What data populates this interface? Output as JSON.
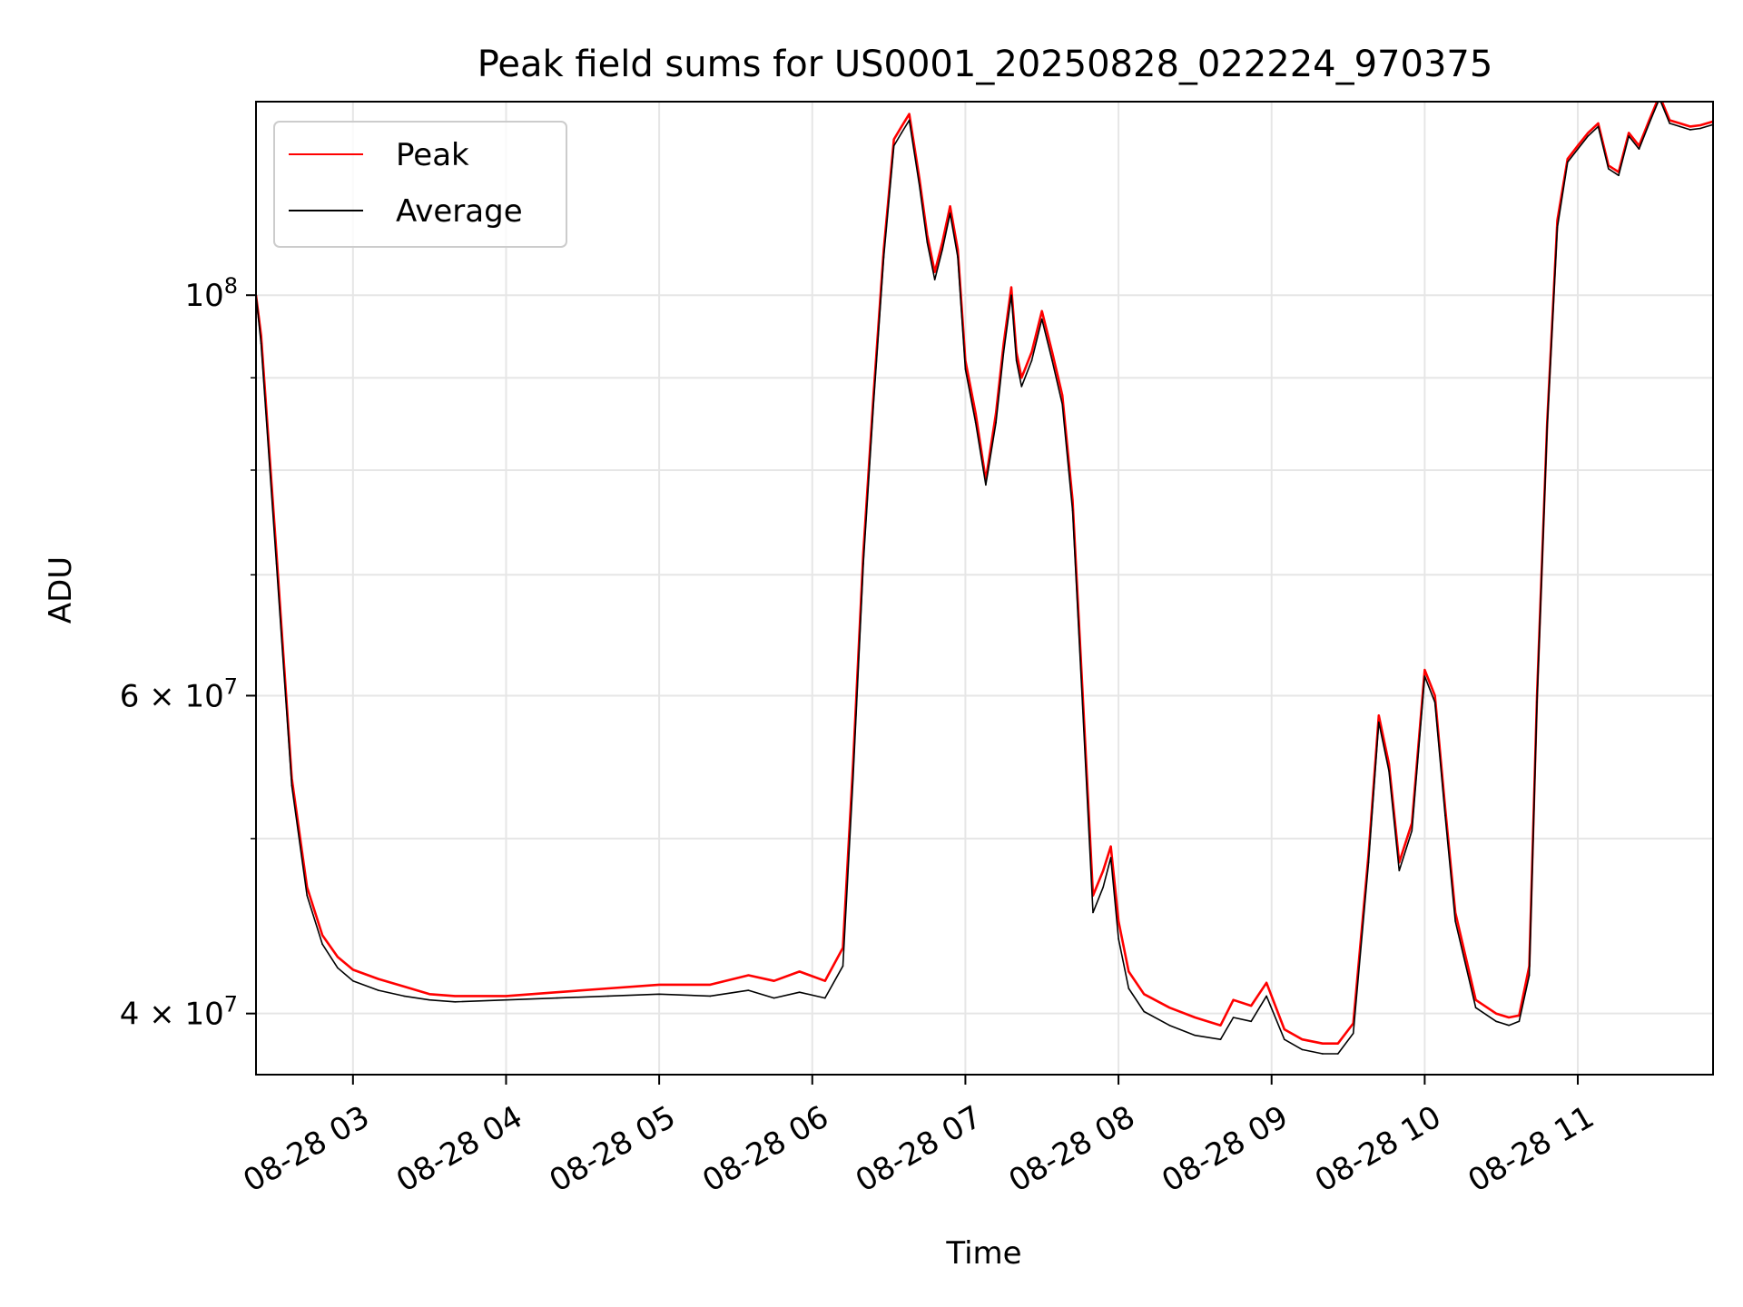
{
  "chart_data": {
    "type": "line",
    "title": "Peak field sums for US0001_20250828_022224_970375",
    "xlabel": "Time",
    "ylabel": "ADU",
    "x_range": [
      "2025-08-28 02:22",
      "2025-08-28 11:53"
    ],
    "ylim": [
      37000000,
      128000000
    ],
    "y_scale": "log",
    "grid": true,
    "legend_position": "top-left",
    "x_ticks": [
      "08-28 03",
      "08-28 04",
      "08-28 05",
      "08-28 06",
      "08-28 07",
      "08-28 08",
      "08-28 09",
      "08-28 10",
      "08-28 11"
    ],
    "x_tick_values": [
      "2025-08-28 03:00",
      "2025-08-28 04:00",
      "2025-08-28 05:00",
      "2025-08-28 06:00",
      "2025-08-28 07:00",
      "2025-08-28 08:00",
      "2025-08-28 09:00",
      "2025-08-28 10:00",
      "2025-08-28 11:00"
    ],
    "y_ticks": [
      {
        "value": 100000000,
        "base": "10",
        "exp": "8"
      },
      {
        "value": 60000000,
        "base": "6 × 10",
        "exp": "7"
      },
      {
        "value": 40000000,
        "base": "4 × 10",
        "exp": "7"
      }
    ],
    "y_minor_ticks": [
      50000000,
      70000000,
      80000000,
      90000000
    ],
    "series": [
      {
        "name": "Peak",
        "color": "#ff0000",
        "x": [
          "2025-08-28 02:22",
          "2025-08-28 02:24",
          "2025-08-28 02:30",
          "2025-08-28 02:36",
          "2025-08-28 02:42",
          "2025-08-28 02:48",
          "2025-08-28 02:54",
          "2025-08-28 03:00",
          "2025-08-28 03:10",
          "2025-08-28 03:20",
          "2025-08-28 03:30",
          "2025-08-28 03:40",
          "2025-08-28 04:00",
          "2025-08-28 04:20",
          "2025-08-28 04:40",
          "2025-08-28 05:00",
          "2025-08-28 05:20",
          "2025-08-28 05:35",
          "2025-08-28 05:45",
          "2025-08-28 05:55",
          "2025-08-28 06:05",
          "2025-08-28 06:12",
          "2025-08-28 06:16",
          "2025-08-28 06:20",
          "2025-08-28 06:24",
          "2025-08-28 06:28",
          "2025-08-28 06:32",
          "2025-08-28 06:35",
          "2025-08-28 06:38",
          "2025-08-28 06:42",
          "2025-08-28 06:45",
          "2025-08-28 06:48",
          "2025-08-28 06:51",
          "2025-08-28 06:54",
          "2025-08-28 06:57",
          "2025-08-28 07:00",
          "2025-08-28 07:04",
          "2025-08-28 07:08",
          "2025-08-28 07:12",
          "2025-08-28 07:15",
          "2025-08-28 07:18",
          "2025-08-28 07:20",
          "2025-08-28 07:22",
          "2025-08-28 07:26",
          "2025-08-28 07:30",
          "2025-08-28 07:34",
          "2025-08-28 07:38",
          "2025-08-28 07:42",
          "2025-08-28 07:46",
          "2025-08-28 07:50",
          "2025-08-28 07:54",
          "2025-08-28 07:57",
          "2025-08-28 08:00",
          "2025-08-28 08:04",
          "2025-08-28 08:10",
          "2025-08-28 08:20",
          "2025-08-28 08:30",
          "2025-08-28 08:40",
          "2025-08-28 08:45",
          "2025-08-28 08:52",
          "2025-08-28 08:58",
          "2025-08-28 09:05",
          "2025-08-28 09:12",
          "2025-08-28 09:20",
          "2025-08-28 09:26",
          "2025-08-28 09:32",
          "2025-08-28 09:38",
          "2025-08-28 09:42",
          "2025-08-28 09:46",
          "2025-08-28 09:50",
          "2025-08-28 09:55",
          "2025-08-28 10:00",
          "2025-08-28 10:04",
          "2025-08-28 10:08",
          "2025-08-28 10:12",
          "2025-08-28 10:20",
          "2025-08-28 10:28",
          "2025-08-28 10:33",
          "2025-08-28 10:37",
          "2025-08-28 10:41",
          "2025-08-28 10:44",
          "2025-08-28 10:48",
          "2025-08-28 10:52",
          "2025-08-28 10:56",
          "2025-08-28 11:00",
          "2025-08-28 11:04",
          "2025-08-28 11:08",
          "2025-08-28 11:12",
          "2025-08-28 11:16",
          "2025-08-28 11:20",
          "2025-08-28 11:24",
          "2025-08-28 11:28",
          "2025-08-28 11:32",
          "2025-08-28 11:36",
          "2025-08-28 11:40",
          "2025-08-28 11:44",
          "2025-08-28 11:48",
          "2025-08-28 11:53"
        ],
        "y": [
          100000000,
          95000000,
          72000000,
          54000000,
          47000000,
          44200000,
          43000000,
          42300000,
          41800000,
          41400000,
          41000000,
          40900000,
          40900000,
          41100000,
          41300000,
          41500000,
          41500000,
          42000000,
          41700000,
          42200000,
          41700000,
          43500000,
          55000000,
          72000000,
          88000000,
          106000000,
          122000000,
          124000000,
          126000000,
          116000000,
          108000000,
          103000000,
          107000000,
          112000000,
          106000000,
          92000000,
          86000000,
          79000000,
          86000000,
          94000000,
          101000000,
          93000000,
          90000000,
          93000000,
          98000000,
          93000000,
          88000000,
          77000000,
          60000000,
          46500000,
          48000000,
          49500000,
          45000000,
          42200000,
          41000000,
          40300000,
          39800000,
          39400000,
          40700000,
          40400000,
          41600000,
          39200000,
          38700000,
          38500000,
          38500000,
          39500000,
          49000000,
          58500000,
          55000000,
          48500000,
          51000000,
          62000000,
          60000000,
          52000000,
          45500000,
          40700000,
          40000000,
          39800000,
          39900000,
          42500000,
          60000000,
          85000000,
          110000000,
          119000000,
          121000000,
          123000000,
          124500000,
          118000000,
          117000000,
          123000000,
          121000000,
          125000000,
          129000000,
          125000000,
          124500000,
          124000000,
          124200000,
          124800000
        ]
      },
      {
        "name": "Average",
        "color": "#000000",
        "x": [
          "2025-08-28 02:22",
          "2025-08-28 02:24",
          "2025-08-28 02:30",
          "2025-08-28 02:36",
          "2025-08-28 02:42",
          "2025-08-28 02:48",
          "2025-08-28 02:54",
          "2025-08-28 03:00",
          "2025-08-28 03:10",
          "2025-08-28 03:20",
          "2025-08-28 03:30",
          "2025-08-28 03:40",
          "2025-08-28 04:00",
          "2025-08-28 04:20",
          "2025-08-28 04:40",
          "2025-08-28 05:00",
          "2025-08-28 05:20",
          "2025-08-28 05:35",
          "2025-08-28 05:45",
          "2025-08-28 05:55",
          "2025-08-28 06:05",
          "2025-08-28 06:12",
          "2025-08-28 06:16",
          "2025-08-28 06:20",
          "2025-08-28 06:24",
          "2025-08-28 06:28",
          "2025-08-28 06:32",
          "2025-08-28 06:35",
          "2025-08-28 06:38",
          "2025-08-28 06:42",
          "2025-08-28 06:45",
          "2025-08-28 06:48",
          "2025-08-28 06:51",
          "2025-08-28 06:54",
          "2025-08-28 06:57",
          "2025-08-28 07:00",
          "2025-08-28 07:04",
          "2025-08-28 07:08",
          "2025-08-28 07:12",
          "2025-08-28 07:15",
          "2025-08-28 07:18",
          "2025-08-28 07:20",
          "2025-08-28 07:22",
          "2025-08-28 07:26",
          "2025-08-28 07:30",
          "2025-08-28 07:34",
          "2025-08-28 07:38",
          "2025-08-28 07:42",
          "2025-08-28 07:46",
          "2025-08-28 07:50",
          "2025-08-28 07:54",
          "2025-08-28 07:57",
          "2025-08-28 08:00",
          "2025-08-28 08:04",
          "2025-08-28 08:10",
          "2025-08-28 08:20",
          "2025-08-28 08:30",
          "2025-08-28 08:40",
          "2025-08-28 08:45",
          "2025-08-28 08:52",
          "2025-08-28 08:58",
          "2025-08-28 09:05",
          "2025-08-28 09:12",
          "2025-08-28 09:20",
          "2025-08-28 09:26",
          "2025-08-28 09:32",
          "2025-08-28 09:38",
          "2025-08-28 09:42",
          "2025-08-28 09:46",
          "2025-08-28 09:50",
          "2025-08-28 09:55",
          "2025-08-28 10:00",
          "2025-08-28 10:04",
          "2025-08-28 10:08",
          "2025-08-28 10:12",
          "2025-08-28 10:20",
          "2025-08-28 10:28",
          "2025-08-28 10:33",
          "2025-08-28 10:37",
          "2025-08-28 10:41",
          "2025-08-28 10:44",
          "2025-08-28 10:48",
          "2025-08-28 10:52",
          "2025-08-28 10:56",
          "2025-08-28 11:00",
          "2025-08-28 11:04",
          "2025-08-28 11:08",
          "2025-08-28 11:12",
          "2025-08-28 11:16",
          "2025-08-28 11:20",
          "2025-08-28 11:24",
          "2025-08-28 11:28",
          "2025-08-28 11:32",
          "2025-08-28 11:36",
          "2025-08-28 11:40",
          "2025-08-28 11:44",
          "2025-08-28 11:48",
          "2025-08-28 11:53"
        ],
        "y": [
          100000000,
          94000000,
          71000000,
          53500000,
          46500000,
          43700000,
          42400000,
          41700000,
          41200000,
          40900000,
          40700000,
          40600000,
          40700000,
          40800000,
          40900000,
          41000000,
          40900000,
          41200000,
          40800000,
          41100000,
          40800000,
          42500000,
          54000000,
          71000000,
          87000000,
          105000000,
          121000000,
          123000000,
          125000000,
          115000000,
          107000000,
          102000000,
          106000000,
          111000000,
          105000000,
          91000000,
          85000000,
          78500000,
          85000000,
          93000000,
          100000000,
          92000000,
          89000000,
          92000000,
          97000000,
          92000000,
          87000000,
          76000000,
          59000000,
          45500000,
          47000000,
          48800000,
          44000000,
          41300000,
          40100000,
          39400000,
          38900000,
          38700000,
          39800000,
          39600000,
          40900000,
          38700000,
          38200000,
          38000000,
          38000000,
          39000000,
          48500000,
          58000000,
          54500000,
          48000000,
          50500000,
          61500000,
          59500000,
          51500000,
          45000000,
          40300000,
          39600000,
          39400000,
          39600000,
          42000000,
          59500000,
          84500000,
          109000000,
          118500000,
          120500000,
          122500000,
          124000000,
          117500000,
          116500000,
          122500000,
          120500000,
          124500000,
          128500000,
          124500000,
          124000000,
          123500000,
          123700000,
          124300000
        ]
      }
    ]
  }
}
